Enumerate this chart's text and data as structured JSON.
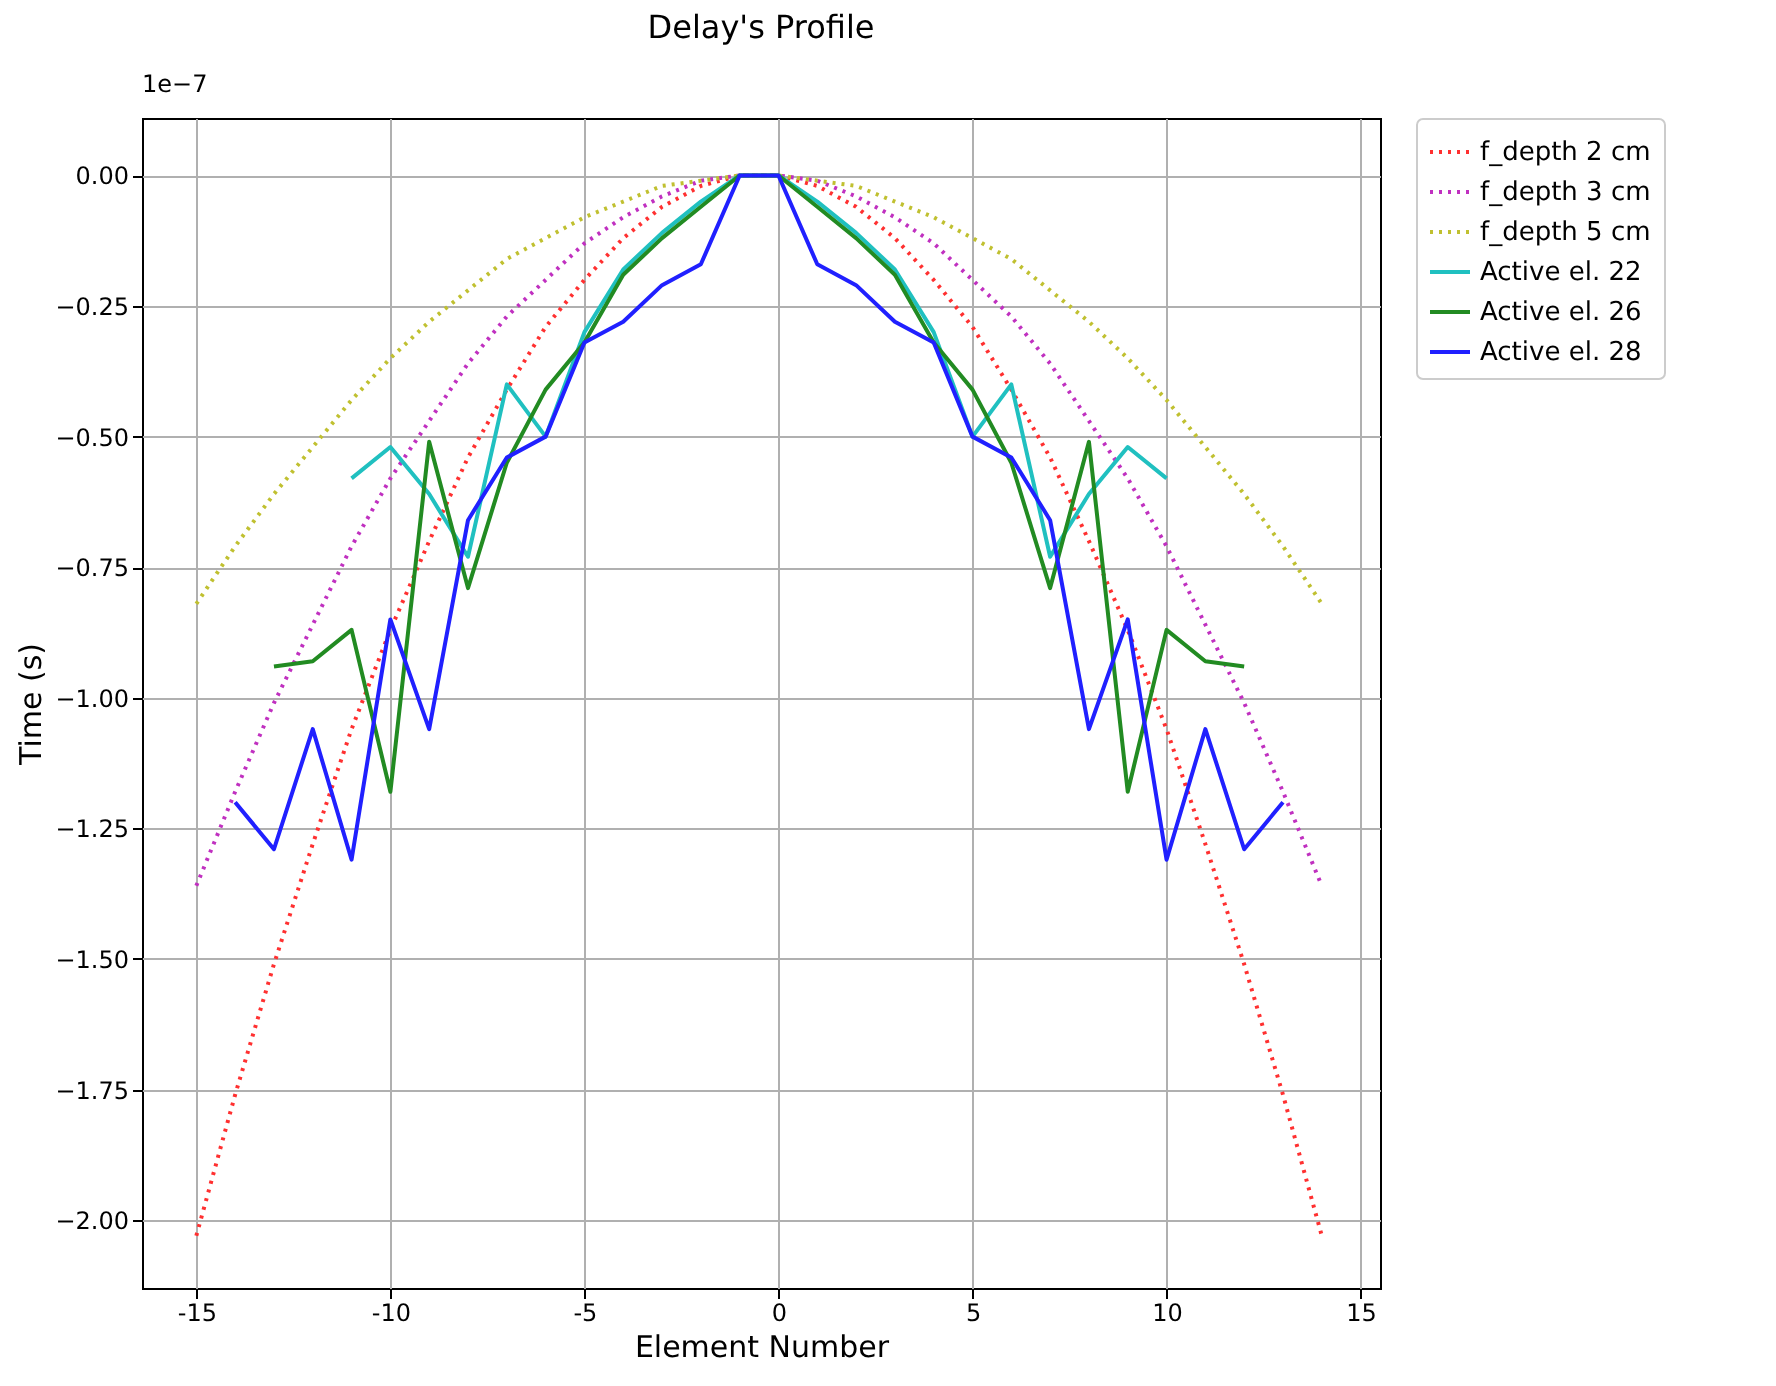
{
  "chart_data": {
    "type": "line",
    "title": "Delay's Profile",
    "xlabel": "Element Number",
    "ylabel": "Time (s)",
    "annotations": [
      "1e−7"
    ],
    "xlim": [
      -16.4,
      15.5
    ],
    "xticks": [
      {
        "value": -15,
        "label": "-15"
      },
      {
        "value": -10,
        "label": "-10"
      },
      {
        "value": -5,
        "label": "-5"
      },
      0,
      5,
      10,
      15
    ],
    "ylim": [
      -2.13,
      0.11
    ],
    "yticks": [
      {
        "value": 0,
        "label": "0.00"
      },
      {
        "value": -0.25,
        "label": "−0.25"
      },
      {
        "value": -0.5,
        "label": "−0.50"
      },
      {
        "value": -0.75,
        "label": "−0.75"
      },
      {
        "value": -1,
        "label": "−1.00"
      },
      {
        "value": -1.25,
        "label": "−1.25"
      },
      {
        "value": -1.5,
        "label": "−1.50"
      },
      {
        "value": -1.75,
        "label": "−1.75"
      },
      {
        "value": -2,
        "label": "−2.00"
      }
    ],
    "grid": true,
    "legend": "top right",
    "marker": "none",
    "series": [
      {
        "name": "f_depth 2 cm",
        "color": "#ff3030",
        "line_style": "dotted",
        "x": [
          -15,
          -14,
          -13,
          -12,
          -11,
          -10,
          -9,
          -8,
          -7,
          -6,
          -5,
          -4,
          -3,
          -2,
          -1,
          0,
          1,
          2,
          3,
          4,
          5,
          6,
          7,
          8,
          9,
          10,
          11,
          12,
          13,
          14
        ],
        "values": [
          -2.03,
          -1.76,
          -1.51,
          -1.28,
          -1.06,
          -0.87,
          -0.7,
          -0.54,
          -0.41,
          -0.29,
          -0.2,
          -0.12,
          -0.06,
          -0.02,
          0,
          0,
          -0.02,
          -0.06,
          -0.12,
          -0.2,
          -0.29,
          -0.41,
          -0.54,
          -0.7,
          -0.87,
          -1.06,
          -1.28,
          -1.51,
          -1.76,
          -2.03
        ]
      },
      {
        "name": "f_depth 3 cm",
        "color": "#c030c0",
        "line_style": "dotted",
        "x": [
          -15,
          -14,
          -13,
          -12,
          -11,
          -10,
          -9,
          -8,
          -7,
          -6,
          -5,
          -4,
          -3,
          -2,
          -1,
          0,
          1,
          2,
          3,
          4,
          5,
          6,
          7,
          8,
          9,
          10,
          11,
          12,
          13,
          14
        ],
        "values": [
          -1.36,
          -1.18,
          -1.01,
          -0.86,
          -0.71,
          -0.58,
          -0.47,
          -0.36,
          -0.27,
          -0.2,
          -0.13,
          -0.08,
          -0.04,
          -0.01,
          0,
          0,
          -0.01,
          -0.04,
          -0.08,
          -0.13,
          -0.2,
          -0.27,
          -0.36,
          -0.47,
          -0.58,
          -0.71,
          -0.86,
          -1.01,
          -1.18,
          -1.36
        ]
      },
      {
        "name": "f_depth 5 cm",
        "color": "#c0c030",
        "line_style": "dotted",
        "x": [
          -15,
          -14,
          -13,
          -12,
          -11,
          -10,
          -9,
          -8,
          -7,
          -6,
          -5,
          -4,
          -3,
          -2,
          -1,
          0,
          1,
          2,
          3,
          4,
          5,
          6,
          7,
          8,
          9,
          10,
          11,
          12,
          13,
          14
        ],
        "values": [
          -0.82,
          -0.71,
          -0.61,
          -0.52,
          -0.43,
          -0.35,
          -0.28,
          -0.22,
          -0.16,
          -0.12,
          -0.08,
          -0.05,
          -0.02,
          -0.01,
          0,
          0,
          -0.01,
          -0.02,
          -0.05,
          -0.08,
          -0.12,
          -0.16,
          -0.22,
          -0.28,
          -0.35,
          -0.43,
          -0.52,
          -0.61,
          -0.71,
          -0.82
        ]
      },
      {
        "name": "Active el. 22",
        "color": "#20c0c0",
        "line_style": "solid",
        "x": [
          -11,
          -10,
          -9,
          -8,
          -7,
          -6,
          -5,
          -4,
          -3,
          -2,
          -1,
          0,
          1,
          2,
          3,
          4,
          5,
          6,
          7,
          8,
          9,
          10
        ],
        "values": [
          -0.58,
          -0.52,
          -0.61,
          -0.73,
          -0.4,
          -0.5,
          -0.3,
          -0.18,
          -0.11,
          -0.05,
          0,
          0,
          -0.05,
          -0.11,
          -0.18,
          -0.3,
          -0.5,
          -0.4,
          -0.73,
          -0.61,
          -0.52,
          -0.58
        ]
      },
      {
        "name": "Active el. 26",
        "color": "#228b22",
        "line_style": "solid",
        "x": [
          -13,
          -12,
          -11,
          -10,
          -9,
          -8,
          -7,
          -6,
          -5,
          -4,
          -3,
          -2,
          -1,
          0,
          1,
          2,
          3,
          4,
          5,
          6,
          7,
          8,
          9,
          10,
          11,
          12
        ],
        "values": [
          -0.94,
          -0.93,
          -0.87,
          -1.18,
          -0.51,
          -0.79,
          -0.55,
          -0.41,
          -0.32,
          -0.19,
          -0.12,
          -0.06,
          0,
          0,
          -0.06,
          -0.12,
          -0.19,
          -0.32,
          -0.41,
          -0.55,
          -0.79,
          -0.51,
          -1.18,
          -0.87,
          -0.93,
          -0.94
        ]
      },
      {
        "name": "Active el. 28",
        "color": "#2020ff",
        "line_style": "solid",
        "x": [
          -14,
          -13,
          -12,
          -11,
          -10,
          -9,
          -8,
          -7,
          -6,
          -5,
          -4,
          -3,
          -2,
          -1,
          0,
          1,
          2,
          3,
          4,
          5,
          6,
          7,
          8,
          9,
          10,
          11,
          12,
          13
        ],
        "values": [
          -1.2,
          -1.29,
          -1.06,
          -1.31,
          -0.85,
          -1.06,
          -0.66,
          -0.54,
          -0.5,
          -0.32,
          -0.28,
          -0.21,
          -0.17,
          0,
          0,
          -0.17,
          -0.21,
          -0.28,
          -0.32,
          -0.5,
          -0.54,
          -0.66,
          -1.06,
          -0.85,
          -1.31,
          -1.06,
          -1.29,
          -1.2
        ]
      }
    ]
  }
}
